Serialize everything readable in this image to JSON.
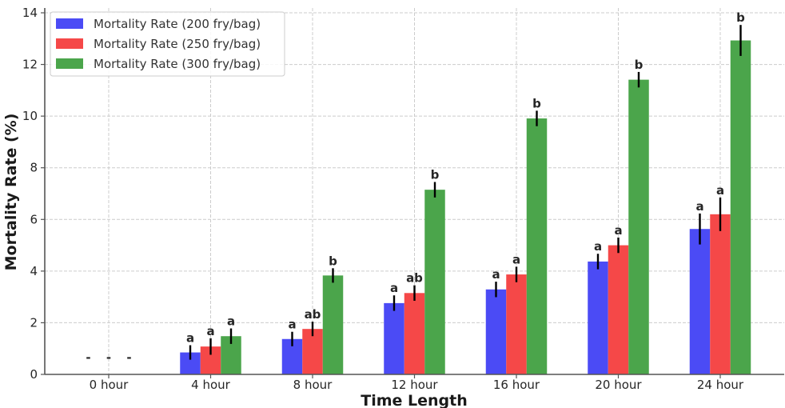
{
  "chart_data": {
    "type": "bar",
    "title": "",
    "xlabel": "Time Length",
    "ylabel": "Mortality Rate (%)",
    "ylim": [
      0,
      14
    ],
    "yticks": [
      "0",
      "2",
      "4",
      "6",
      "8",
      "10",
      "12",
      "14"
    ],
    "grid": true,
    "legend_position": "top-left",
    "categories": [
      "0 hour",
      "4 hour",
      "8 hour",
      "12 hour",
      "16 hour",
      "20 hour",
      "24 hour"
    ],
    "series": [
      {
        "name": "Mortality Rate (200 fry/bag)",
        "color": "#4b4bf5",
        "values": [
          null,
          0.85,
          1.37,
          2.76,
          3.29,
          4.37,
          5.63
        ],
        "errors": [
          null,
          0.28,
          0.28,
          0.3,
          0.3,
          0.3,
          0.6
        ],
        "sig_labels": [
          "-",
          "a",
          "a",
          "a",
          "a",
          "a",
          "a"
        ]
      },
      {
        "name": "Mortality Rate (250 fry/bag)",
        "color": "#f54848",
        "values": [
          null,
          1.08,
          1.76,
          3.15,
          3.87,
          5.0,
          6.2
        ],
        "errors": [
          null,
          0.32,
          0.28,
          0.3,
          0.3,
          0.3,
          0.65
        ],
        "sig_labels": [
          "-",
          "a",
          "ab",
          "ab",
          "a",
          "a",
          "a"
        ]
      },
      {
        "name": "Mortality Rate (300 fry/bag)",
        "color": "#4ba54b",
        "values": [
          null,
          1.48,
          3.83,
          7.15,
          9.91,
          11.41,
          12.93
        ],
        "errors": [
          null,
          0.3,
          0.28,
          0.3,
          0.3,
          0.3,
          0.6
        ],
        "sig_labels": [
          "-",
          "a",
          "b",
          "b",
          "b",
          "b",
          "b"
        ]
      }
    ]
  }
}
